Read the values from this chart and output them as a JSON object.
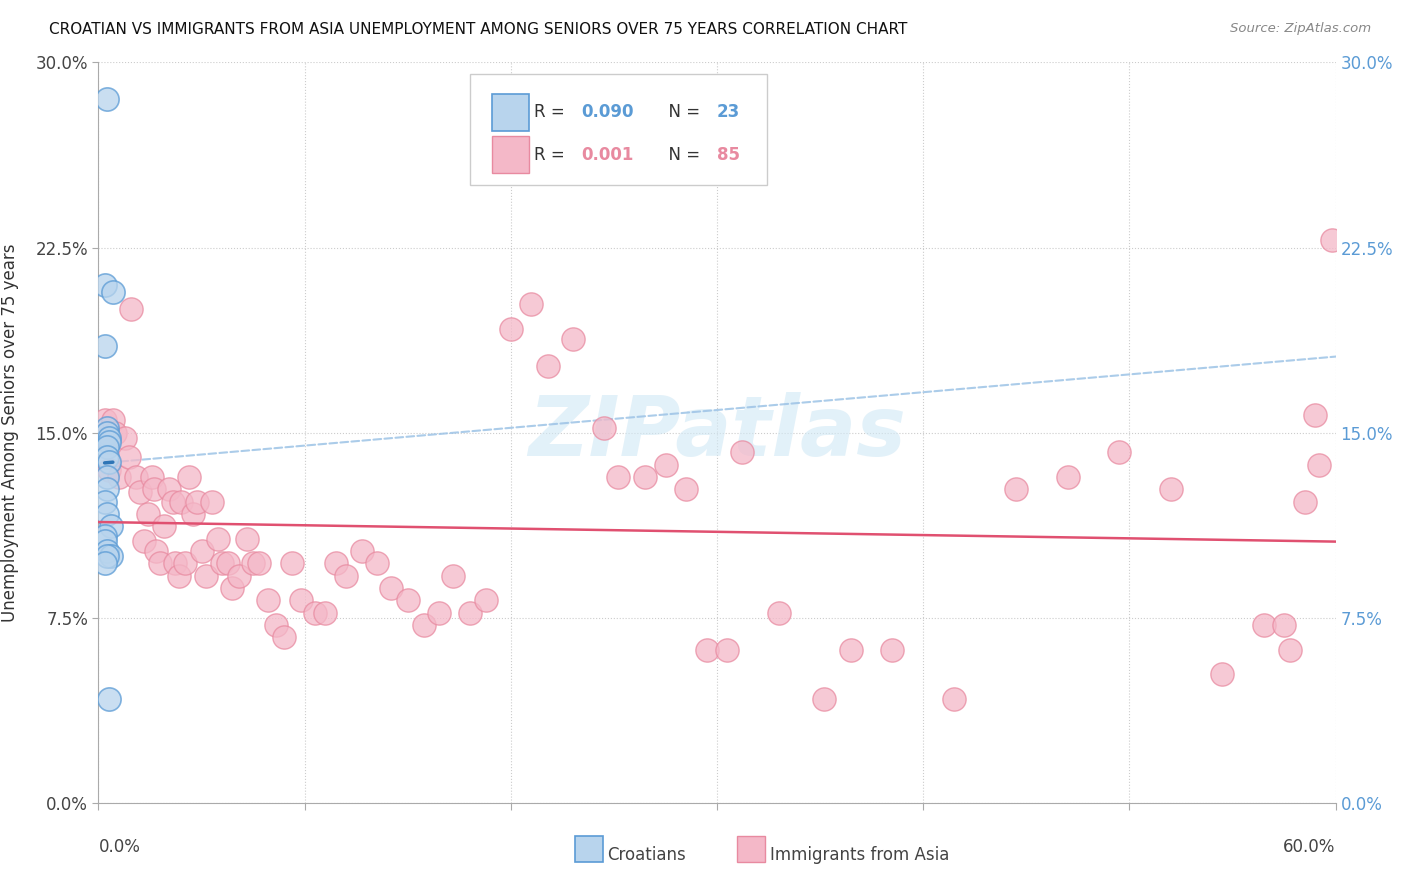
{
  "title": "CROATIAN VS IMMIGRANTS FROM ASIA UNEMPLOYMENT AMONG SENIORS OVER 75 YEARS CORRELATION CHART",
  "source": "Source: ZipAtlas.com",
  "ylabel": "Unemployment Among Seniors over 75 years",
  "xlim": [
    0.0,
    0.6
  ],
  "ylim": [
    0.0,
    0.3
  ],
  "ytick_vals": [
    0.0,
    0.075,
    0.15,
    0.225,
    0.3
  ],
  "ytick_labels": [
    "0.0%",
    "7.5%",
    "15.0%",
    "22.5%",
    "30.0%"
  ],
  "color_croatian_fill": "#b8d4ed",
  "color_croatian_edge": "#5b9bd5",
  "color_asia_fill": "#f4b8c8",
  "color_asia_edge": "#e88aa0",
  "color_trendline_croatian": "#2e75b6",
  "color_trendline_asia": "#e05070",
  "color_dashed": "#9dc3e6",
  "watermark_text": "ZIPatlas",
  "watermark_color": "#d0e8f5",
  "legend_r1": "0.090",
  "legend_n1": "23",
  "legend_r2": "0.001",
  "legend_n2": "85",
  "croatians_x": [
    0.004,
    0.003,
    0.007,
    0.003,
    0.004,
    0.004,
    0.005,
    0.005,
    0.004,
    0.004,
    0.005,
    0.004,
    0.004,
    0.003,
    0.004,
    0.006,
    0.003,
    0.003,
    0.004,
    0.006,
    0.004,
    0.003,
    0.005
  ],
  "croatians_y": [
    0.285,
    0.21,
    0.207,
    0.185,
    0.152,
    0.15,
    0.148,
    0.146,
    0.144,
    0.14,
    0.138,
    0.132,
    0.127,
    0.122,
    0.117,
    0.112,
    0.108,
    0.106,
    0.102,
    0.1,
    0.1,
    0.097,
    0.042
  ],
  "asia_x": [
    0.003,
    0.004,
    0.005,
    0.007,
    0.008,
    0.01,
    0.013,
    0.015,
    0.016,
    0.018,
    0.02,
    0.022,
    0.024,
    0.026,
    0.027,
    0.028,
    0.03,
    0.032,
    0.034,
    0.036,
    0.037,
    0.039,
    0.04,
    0.042,
    0.044,
    0.046,
    0.048,
    0.05,
    0.052,
    0.055,
    0.058,
    0.06,
    0.063,
    0.065,
    0.068,
    0.072,
    0.075,
    0.078,
    0.082,
    0.086,
    0.09,
    0.094,
    0.098,
    0.105,
    0.11,
    0.115,
    0.12,
    0.128,
    0.135,
    0.142,
    0.15,
    0.158,
    0.165,
    0.172,
    0.18,
    0.188,
    0.2,
    0.21,
    0.218,
    0.23,
    0.245,
    0.252,
    0.265,
    0.275,
    0.285,
    0.295,
    0.305,
    0.312,
    0.33,
    0.352,
    0.365,
    0.385,
    0.415,
    0.445,
    0.47,
    0.495,
    0.52,
    0.545,
    0.565,
    0.578,
    0.592,
    0.598,
    0.59,
    0.585,
    0.575
  ],
  "asia_y": [
    0.155,
    0.148,
    0.135,
    0.155,
    0.15,
    0.132,
    0.148,
    0.14,
    0.2,
    0.132,
    0.126,
    0.106,
    0.117,
    0.132,
    0.127,
    0.102,
    0.097,
    0.112,
    0.127,
    0.122,
    0.097,
    0.092,
    0.122,
    0.097,
    0.132,
    0.117,
    0.122,
    0.102,
    0.092,
    0.122,
    0.107,
    0.097,
    0.097,
    0.087,
    0.092,
    0.107,
    0.097,
    0.097,
    0.082,
    0.072,
    0.067,
    0.097,
    0.082,
    0.077,
    0.077,
    0.097,
    0.092,
    0.102,
    0.097,
    0.087,
    0.082,
    0.072,
    0.077,
    0.092,
    0.077,
    0.082,
    0.192,
    0.202,
    0.177,
    0.188,
    0.152,
    0.132,
    0.132,
    0.137,
    0.127,
    0.062,
    0.062,
    0.142,
    0.077,
    0.042,
    0.062,
    0.062,
    0.042,
    0.127,
    0.132,
    0.142,
    0.127,
    0.052,
    0.072,
    0.062,
    0.137,
    0.228,
    0.157,
    0.122,
    0.072
  ]
}
